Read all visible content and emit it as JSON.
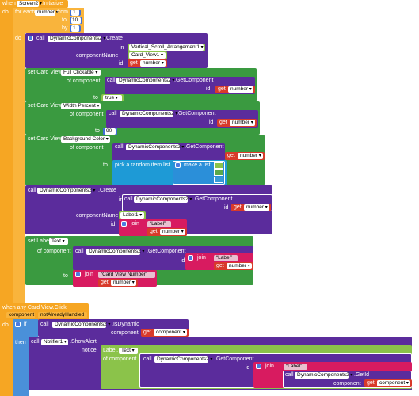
{
  "event1": {
    "when": "when",
    "component": "Screen2",
    "event": ".Initialize",
    "do": "do"
  },
  "loop": {
    "for_each": "for each",
    "var": "number",
    "from_label": "from",
    "from_val": "1",
    "to_label": "to",
    "to_val": "10",
    "by_label": "by",
    "by_val": "1",
    "do": "do"
  },
  "create1": {
    "call": "call",
    "component": "DynamicComponents2",
    "method": ".Create",
    "in": "in",
    "in_val": "Vertical_Scroll_Arrangement1",
    "componentName": "componentName",
    "componentName_val": "Card_View1",
    "id": "id",
    "get": "get",
    "get_val": "number"
  },
  "set1": {
    "set": "set Card View",
    "prop": "Full Clickable",
    "of_component": "of component",
    "call": "call",
    "component": "DynamicComponents2",
    "method": ".GetComponent",
    "id": "id",
    "get": "get",
    "get_val": "number",
    "to": "to",
    "to_val": "true"
  },
  "set2": {
    "set": "set Card View",
    "prop": "Width Percent",
    "of_component": "of component",
    "call": "call",
    "component": "DynamicComponents2",
    "method": ".GetComponent",
    "id": "id",
    "get": "get",
    "get_val": "number",
    "to": "to",
    "to_val": "90"
  },
  "set3": {
    "set": "set Card View",
    "prop": "Background Color",
    "of_component": "of component",
    "call": "call",
    "component": "DynamicComponents2",
    "method": ".GetComponent",
    "id": "id",
    "get": "get",
    "get_val": "number",
    "to": "to",
    "pick": "pick a random item  list",
    "make_list": "make a list"
  },
  "create2": {
    "call": "call",
    "component": "DynamicComponents2",
    "method": ".Create",
    "in": "in",
    "in_call": "call",
    "in_component": "DynamicComponents2",
    "in_method": ".GetComponent",
    "id": "id",
    "get": "get",
    "get_val": "number",
    "componentName": "componentName",
    "componentName_val": "Label1",
    "id2": "id",
    "join": "join",
    "join_text": "Label",
    "get2": "get",
    "get2_val": "number"
  },
  "set4": {
    "set": "set Label",
    "prop": "Text",
    "of_component": "of component",
    "call": "call",
    "component": "DynamicComponents2",
    "method": ".GetComponent",
    "id": "id",
    "join": "join",
    "join_text": "Label",
    "get": "get",
    "get_val": "number",
    "to": "to",
    "join2": "join",
    "join2_text": "Card View Number",
    "get2": "get",
    "get2_val": "number"
  },
  "event2": {
    "when": "when any Card View.Click",
    "component": "component",
    "not_handled": "notAlreadyHandled",
    "do": "do",
    "if": "if",
    "call": "call",
    "dc_component": "DynamicComponents2",
    "is_dynamic": ".IsDynamic",
    "component_label": "component",
    "get": "get",
    "get_val": "component",
    "then": "then",
    "notifier_call": "call",
    "notifier": "Notifier1",
    "show_alert": ".ShowAlert",
    "notice": "notice",
    "label": "Label.",
    "label_prop": "Text",
    "of_component": "of component",
    "gc_call": "call",
    "gc_component": "DynamicComponents2",
    "gc_method": ".GetComponent",
    "id": "id",
    "join": "join",
    "join_text": "Label",
    "getid_call": "call",
    "getid_component": "DynamicComponents2",
    "getid_method": ".GetId",
    "getid_component_label": "component",
    "get2": "get",
    "get2_val": "component"
  },
  "colors": {
    "event": "#f6a623",
    "component_call": "#5b2c9c",
    "setter": "#3a9a40",
    "math": "#3f6fd6",
    "variable": "#d83a2a",
    "text_join": "#d81b60",
    "list": "#1e9ad6",
    "logic": "#8bc34a"
  }
}
